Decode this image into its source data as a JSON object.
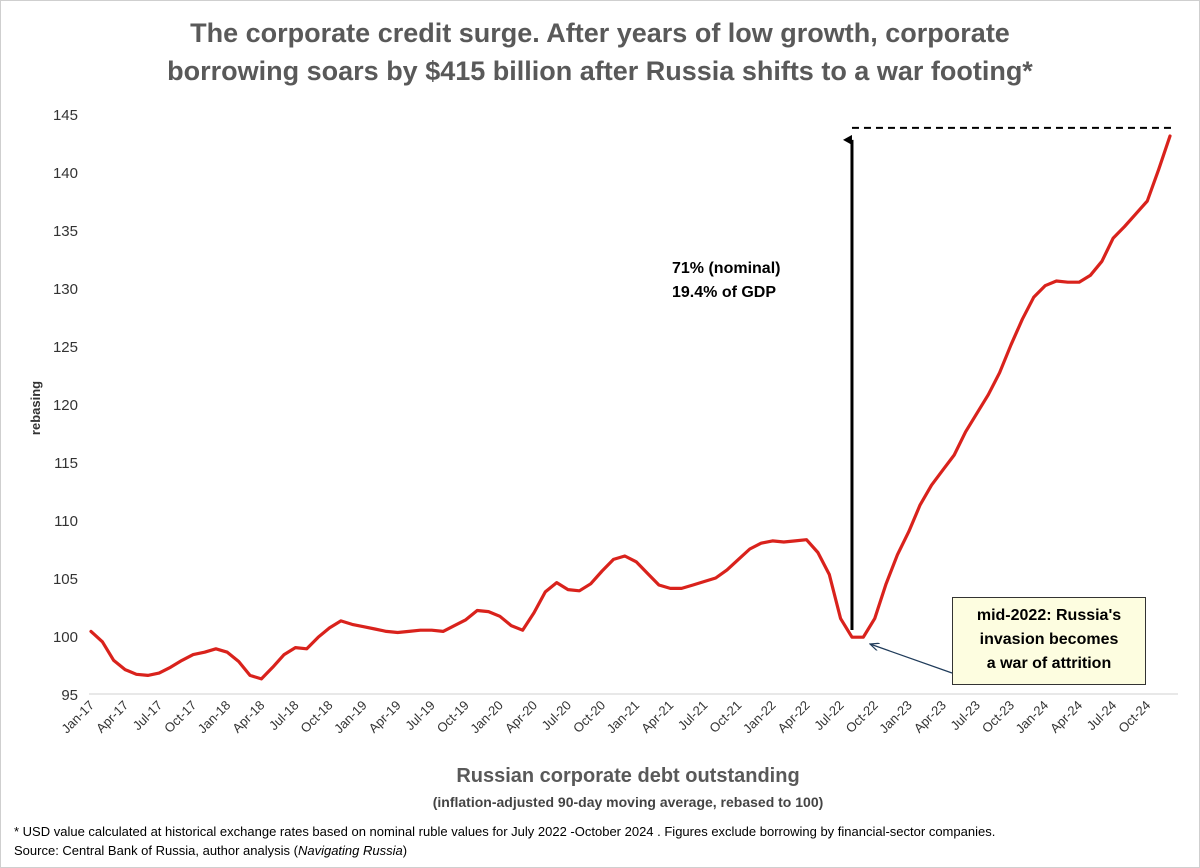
{
  "title_line1": "The corporate credit surge.  After years of low growth, corporate",
  "title_line2": "borrowing soars by $415 billion after Russia shifts to a war footing*",
  "chart_data": {
    "type": "line",
    "title": "The corporate credit surge.  After years of low growth, corporate borrowing soars by $415 billion after Russia shifts to a war footing*",
    "xlabel": "Russian corporate debt outstanding",
    "xlabel_sub": "(inflation-adjusted 90-day moving average, rebased to 100)",
    "ylabel": "rebasing",
    "ylim": [
      95,
      145
    ],
    "yticks": [
      95,
      100,
      105,
      110,
      115,
      120,
      125,
      130,
      135,
      140,
      145
    ],
    "xticks": [
      "Jan-17",
      "Apr-17",
      "Jul-17",
      "Oct-17",
      "Jan-18",
      "Apr-18",
      "Jul-18",
      "Oct-18",
      "Jan-19",
      "Apr-19",
      "Jul-19",
      "Oct-19",
      "Jan-20",
      "Apr-20",
      "Jul-20",
      "Oct-20",
      "Jan-21",
      "Apr-21",
      "Jul-21",
      "Oct-21",
      "Jan-22",
      "Apr-22",
      "Jul-22",
      "Oct-22",
      "Jan-23",
      "Apr-23",
      "Jul-23",
      "Oct-23",
      "Jan-24",
      "Apr-24",
      "Jul-24",
      "Oct-24"
    ],
    "grid": false,
    "series": [
      {
        "name": "Russian corporate debt outstanding",
        "color": "#d9221c",
        "values": [
          100.4,
          99.5,
          97.9,
          97.1,
          96.7,
          96.6,
          96.8,
          97.3,
          97.9,
          98.4,
          98.6,
          98.9,
          98.6,
          97.8,
          96.6,
          96.3,
          97.3,
          98.4,
          99.0,
          98.9,
          99.9,
          100.7,
          101.3,
          101.0,
          100.8,
          100.6,
          100.4,
          100.3,
          100.4,
          100.5,
          100.5,
          100.4,
          100.9,
          101.4,
          102.2,
          102.1,
          101.7,
          100.9,
          100.5,
          102.0,
          103.8,
          104.6,
          104.0,
          103.9,
          104.5,
          105.6,
          106.6,
          106.9,
          106.4,
          105.4,
          104.4,
          104.1,
          104.1,
          104.4,
          104.7,
          105.0,
          105.7,
          106.6,
          107.5,
          108.0,
          108.2,
          108.1,
          108.2,
          108.3,
          107.2,
          105.3,
          101.5,
          99.9,
          99.9,
          101.5,
          104.5,
          107.0,
          109.0,
          111.3,
          113.0,
          114.3,
          115.6,
          117.6,
          119.2,
          120.8,
          122.7,
          125.1,
          127.3,
          129.2,
          130.2,
          130.6,
          130.5,
          130.5,
          131.1,
          132.3,
          134.3,
          135.3,
          136.4,
          137.5,
          140.2,
          143.1
        ]
      }
    ],
    "annotations": {
      "arrow_label_line1": "71% (nominal)",
      "arrow_label_line2": "19.4% of GDP",
      "dashed_line_level": 143.8,
      "arrow_from_value": 100.0,
      "arrow_to_value": 143.8,
      "callout_line1": "mid-2022: Russia's",
      "callout_line2": "invasion becomes",
      "callout_line3": "a war of attrition"
    }
  },
  "footnote_line1": "* USD value calculated at historical exchange rates based on nominal ruble values for July 2022 -October 2024 .  Figures exclude  borrowing by financial-sector companies.",
  "footnote_line2_prefix": "Source: Central Bank of Russia, author analysis (",
  "footnote_line2_italic": "Navigating Russia",
  "footnote_line2_suffix": ")"
}
